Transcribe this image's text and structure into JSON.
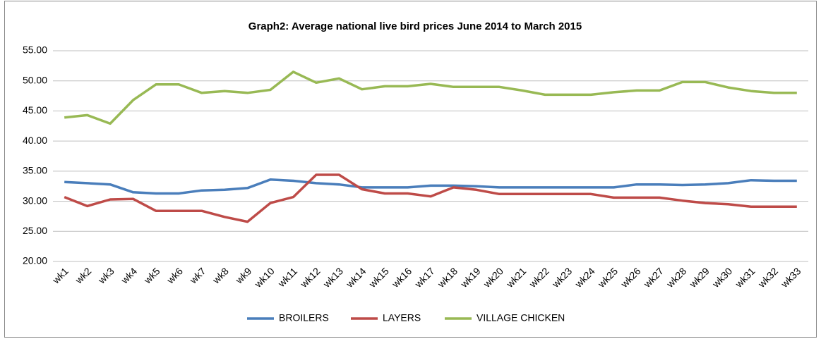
{
  "chart_data": {
    "type": "line",
    "title": "Graph2: Average national live bird prices June 2014 to March 2015",
    "categories": [
      "wk1",
      "wk2",
      "wk3",
      "wk4",
      "wk5",
      "wk6",
      "wk7",
      "wk8",
      "wk9",
      "wk10",
      "wk11",
      "wk12",
      "wk13",
      "wk14",
      "wk15",
      "wk16",
      "wk17",
      "wk18",
      "wk19",
      "wk20",
      "wk21",
      "wk22",
      "wk23",
      "wk24",
      "wk25",
      "wk26",
      "wk27",
      "wk28",
      "wk29",
      "wk30",
      "wk31",
      "wk32",
      "wk33"
    ],
    "series": [
      {
        "name": "BROILERS",
        "color": "#4a7ebb",
        "values": [
          33.2,
          33.0,
          32.8,
          31.5,
          31.3,
          31.3,
          31.8,
          31.9,
          32.2,
          33.6,
          33.4,
          33.0,
          32.8,
          32.3,
          32.3,
          32.3,
          32.6,
          32.6,
          32.5,
          32.3,
          32.3,
          32.3,
          32.3,
          32.3,
          32.3,
          32.8,
          32.8,
          32.7,
          32.8,
          33.0,
          33.5,
          33.4,
          33.4
        ]
      },
      {
        "name": "LAYERS",
        "color": "#be4b48",
        "values": [
          30.7,
          29.2,
          30.3,
          30.4,
          28.4,
          28.4,
          28.4,
          27.4,
          26.6,
          29.7,
          30.7,
          34.4,
          34.4,
          32.0,
          31.3,
          31.3,
          30.8,
          32.3,
          31.9,
          31.2,
          31.2,
          31.2,
          31.2,
          31.2,
          30.6,
          30.6,
          30.6,
          30.1,
          29.7,
          29.5,
          29.1,
          29.1,
          29.1
        ]
      },
      {
        "name": "VILLAGE CHICKEN",
        "color": "#98b954",
        "values": [
          43.9,
          44.3,
          42.9,
          46.8,
          49.4,
          49.4,
          48.0,
          48.3,
          48.0,
          48.5,
          51.5,
          49.7,
          50.4,
          48.6,
          49.1,
          49.1,
          49.5,
          49.0,
          49.0,
          49.0,
          48.4,
          47.7,
          47.7,
          47.7,
          48.1,
          48.4,
          48.4,
          49.8,
          49.8,
          48.9,
          48.3,
          48.0,
          48.0
        ]
      }
    ],
    "ylim": [
      20,
      55
    ],
    "yticks": [
      {
        "value": 20,
        "label": "20.00"
      },
      {
        "value": 25,
        "label": "25.00"
      },
      {
        "value": 30,
        "label": "30.00"
      },
      {
        "value": 35,
        "label": "35.00"
      },
      {
        "value": 40,
        "label": "40.00"
      },
      {
        "value": 45,
        "label": "45.00"
      },
      {
        "value": 50,
        "label": "50.00"
      },
      {
        "value": 55,
        "label": "55.00"
      }
    ],
    "grid": true,
    "legend": "bottom"
  }
}
